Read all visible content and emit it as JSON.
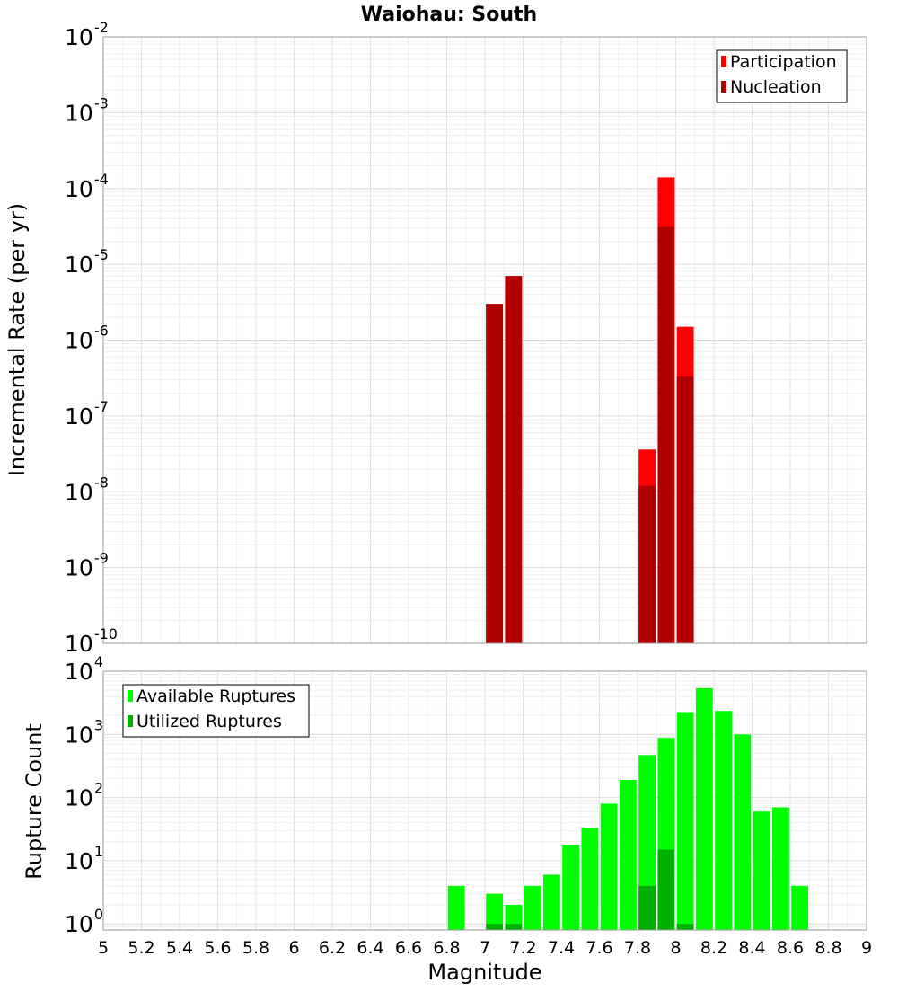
{
  "chart_data": [
    {
      "type": "bar",
      "title": "Waiohau: South",
      "ylabel": "Incremental Rate (per yr)",
      "xlabel": "",
      "y_scale": "log",
      "ylim": [
        1e-10,
        0.01
      ],
      "xlim": [
        5,
        9
      ],
      "grid": true,
      "legend_position": "top-right",
      "y_tick_labels": [
        {
          "base": "10",
          "exp": "-10",
          "value": 1e-10
        },
        {
          "base": "10",
          "exp": "-9",
          "value": 1e-09
        },
        {
          "base": "10",
          "exp": "-8",
          "value": 1e-08
        },
        {
          "base": "10",
          "exp": "-7",
          "value": 1e-07
        },
        {
          "base": "10",
          "exp": "-6",
          "value": 1e-06
        },
        {
          "base": "10",
          "exp": "-5",
          "value": 1e-05
        },
        {
          "base": "10",
          "exp": "-4",
          "value": 0.0001
        },
        {
          "base": "10",
          "exp": "-3",
          "value": 0.001
        },
        {
          "base": "10",
          "exp": "-2",
          "value": 0.01
        }
      ],
      "x": [
        7.05,
        7.15,
        7.85,
        7.95,
        8.05
      ],
      "series": [
        {
          "name": "Participation",
          "color": "#ff0000",
          "values": [
            3e-06,
            7e-06,
            3.6e-08,
            0.00014,
            1.5e-06
          ]
        },
        {
          "name": "Nucleation",
          "color": "#b00000",
          "values": [
            3e-06,
            7e-06,
            1.2e-08,
            3.1e-05,
            3.3e-07
          ]
        }
      ],
      "bar_width": 0.1
    },
    {
      "type": "bar",
      "title": "",
      "ylabel": "Rupture Count",
      "xlabel": "Magnitude",
      "y_scale": "log",
      "ylim": [
        0.8,
        10000.0
      ],
      "xlim": [
        5,
        9
      ],
      "grid": true,
      "legend_position": "top-left",
      "x_tick_labels": [
        "5",
        "5.2",
        "5.4",
        "5.6",
        "5.8",
        "6",
        "6.2",
        "6.4",
        "6.6",
        "6.8",
        "7",
        "7.2",
        "7.4",
        "7.6",
        "7.8",
        "8",
        "8.2",
        "8.4",
        "8.6",
        "8.8",
        "9"
      ],
      "y_tick_labels": [
        {
          "base": "10",
          "exp": "0",
          "value": 1
        },
        {
          "base": "10",
          "exp": "1",
          "value": 10
        },
        {
          "base": "10",
          "exp": "2",
          "value": 100
        },
        {
          "base": "10",
          "exp": "3",
          "value": 1000
        },
        {
          "base": "10",
          "exp": "4",
          "value": 10000
        }
      ],
      "x": [
        6.85,
        7.05,
        7.15,
        7.25,
        7.35,
        7.45,
        7.55,
        7.65,
        7.75,
        7.85,
        7.95,
        8.05,
        8.15,
        8.25,
        8.35,
        8.45,
        8.55,
        8.65
      ],
      "series": [
        {
          "name": "Available Ruptures",
          "color": "#00ff00",
          "values": [
            4,
            3,
            2,
            4,
            6,
            18,
            33,
            80,
            190,
            470,
            880,
            2250,
            5400,
            2350,
            1000,
            60,
            70,
            4
          ]
        },
        {
          "name": "Utilized Ruptures",
          "color": "#00b000",
          "values": [
            0,
            1,
            1,
            0,
            0,
            0,
            0,
            0,
            0,
            4,
            15,
            1,
            0,
            0,
            0,
            0,
            0,
            0
          ]
        }
      ],
      "bar_width": 0.1
    }
  ]
}
